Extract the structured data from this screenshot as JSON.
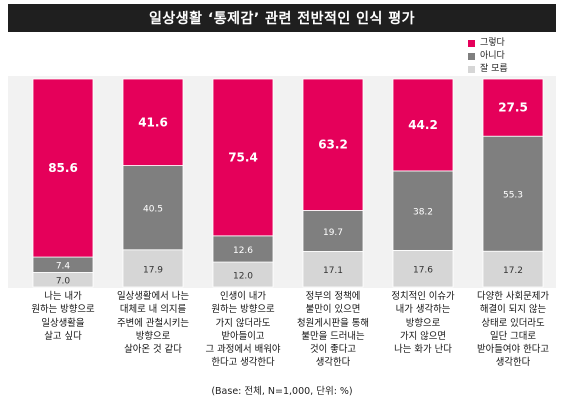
{
  "title": "일상생활 ‘통제감’ 관련 전반적인 인식 평가",
  "footnote": "(Base: 전체, N=1,000, 단위: %)",
  "colors": {
    "yes": "#e5005a",
    "no": "#7f7f7f",
    "unsure": "#d6d6d6",
    "background": "#f2f2f2",
    "title_bg": "#1f1f1f"
  },
  "chart_data": {
    "type": "bar",
    "stacked": true,
    "categories": [
      [
        "나는 내가",
        "원하는 방향으로",
        "일상생활을",
        "살고 싶다"
      ],
      [
        "일상생활에서 나는",
        "대체로 내 의지를",
        "주변에 관철시키는",
        "방향으로",
        "살아온 것 같다"
      ],
      [
        "인생이 내가",
        "원하는 방향으로",
        "가지 않더라도",
        "받아들이고",
        "그 과정에서 배워야",
        "한다고 생각한다"
      ],
      [
        "정부의 정책에",
        "불만이 있으면",
        "청원게시판을 통해",
        "불만을 드러내는",
        "것이 좋다고",
        "생각한다"
      ],
      [
        "정치적인 이슈가",
        "내가 생각하는",
        "방향으로",
        "가지 않으면",
        "나는 화가 난다"
      ],
      [
        "다양한 사회문제가",
        "해결이 되지 않는",
        "상태로 있더라도",
        "일단 그대로",
        "받아들여야 한다고",
        "생각한다"
      ]
    ],
    "series": [
      {
        "name": "그렇다",
        "values": [
          85.6,
          41.6,
          75.4,
          63.2,
          44.2,
          27.5
        ]
      },
      {
        "name": "아니다",
        "values": [
          7.4,
          40.5,
          12.6,
          19.7,
          38.2,
          55.3
        ]
      },
      {
        "name": "잘 모름",
        "values": [
          7.0,
          17.9,
          12.0,
          17.1,
          17.6,
          17.2
        ]
      }
    ],
    "value_labels": [
      [
        "85.6",
        "41.6",
        "75.4",
        "63.2",
        "44.2",
        "27.5"
      ],
      [
        "7.4",
        "40.5",
        "12.6",
        "19.7",
        "38.2",
        "55.3"
      ],
      [
        "7.0",
        "17.9",
        "12.0",
        "17.1",
        "17.6",
        "17.2"
      ]
    ],
    "ylim": [
      0,
      100
    ],
    "legend_position": "top-right"
  }
}
